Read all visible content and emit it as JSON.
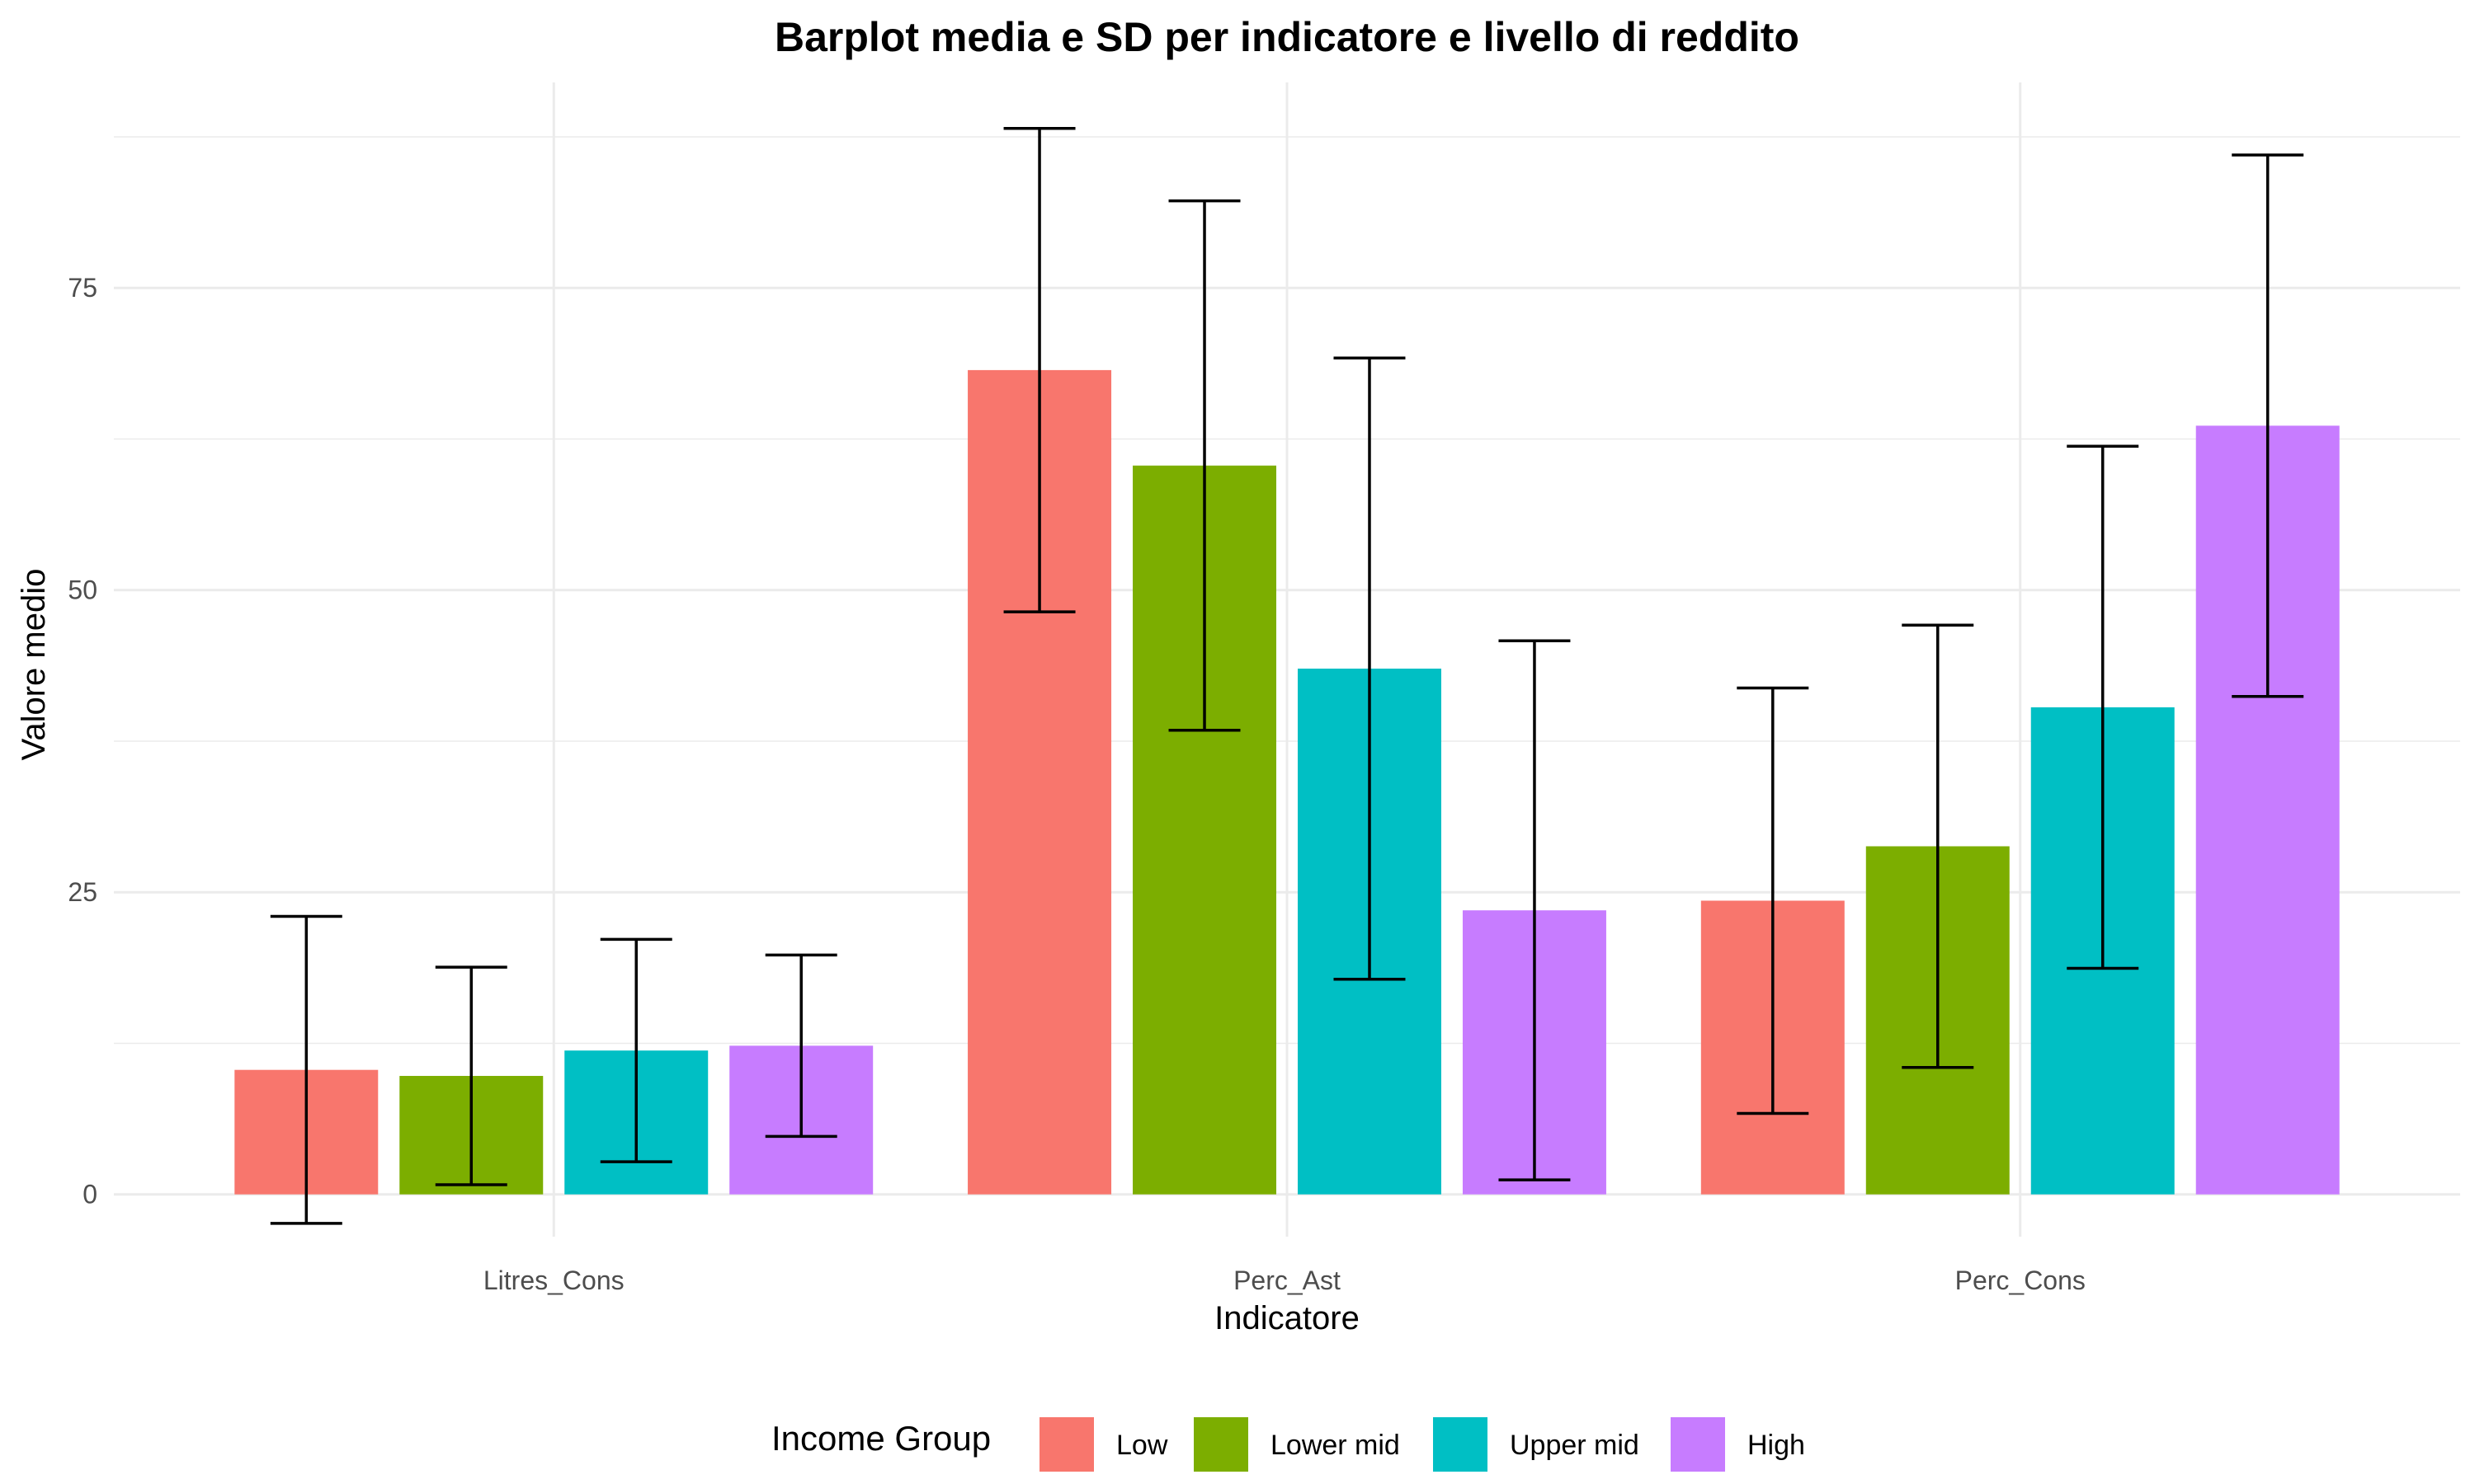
{
  "chart_data": {
    "type": "bar",
    "title": "Barplot media e SD per indicatore e livello di reddito",
    "xlabel": "Indicatore",
    "ylabel": "Valore medio",
    "categories": [
      "Litres_Cons",
      "Perc_Ast",
      "Perc_Cons"
    ],
    "ylim": [
      -3.5,
      92
    ],
    "yticks": [
      0,
      25,
      50,
      75
    ],
    "grid": true,
    "legend": {
      "title": "Income Group",
      "position": "bottom"
    },
    "error_bars": "SD",
    "series": [
      {
        "name": "Low",
        "color": "#F8766D",
        "values": [
          10.3,
          68.2,
          24.3
        ],
        "sd": [
          12.7,
          20.0,
          17.6
        ]
      },
      {
        "name": "Lower mid",
        "color": "#7CAE00",
        "values": [
          9.8,
          60.3,
          28.8
        ],
        "sd": [
          9.0,
          21.9,
          18.3
        ]
      },
      {
        "name": "Upper mid",
        "color": "#00BFC4",
        "values": [
          11.9,
          43.5,
          40.3
        ],
        "sd": [
          9.2,
          25.7,
          21.6
        ]
      },
      {
        "name": "High",
        "color": "#C77CFF",
        "values": [
          12.3,
          23.5,
          63.6
        ],
        "sd": [
          7.5,
          22.3,
          22.4
        ]
      }
    ]
  }
}
